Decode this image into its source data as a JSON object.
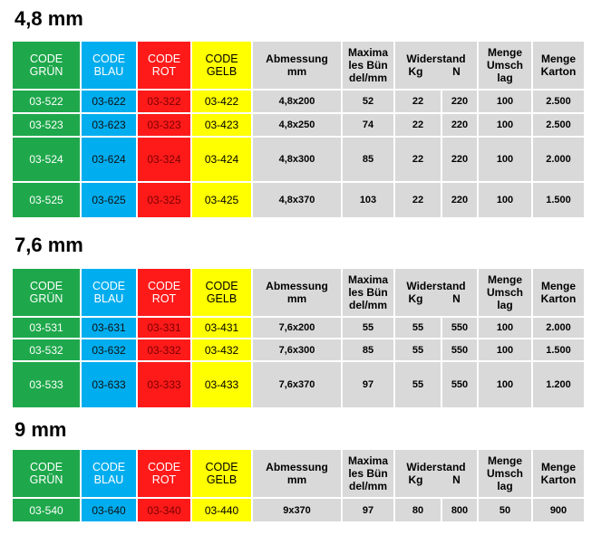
{
  "columns": [
    "CODE\nGRÜN",
    "CODE\nBLAU",
    "CODE\nROT",
    "CODE\nGELB",
    "Abmessung\nmm",
    "Maxima\nles Bün\ndel/mm",
    "Widerstand",
    "Menge\nUmsch\nlag",
    "Menge\nKarton"
  ],
  "widerstand_units": [
    "Kg",
    "N"
  ],
  "sections": [
    {
      "title": "4,8 mm",
      "rows": [
        [
          "03-522",
          "03-622",
          "03-322",
          "03-422",
          "4,8x200",
          "52",
          "22",
          "220",
          "100",
          "2.500"
        ],
        [
          "03-523",
          "03-623",
          "03-323",
          "03-423",
          "4,8x250",
          "74",
          "22",
          "220",
          "100",
          "2.500"
        ],
        [
          "03-524",
          "03-624",
          "03-324",
          "03-424",
          "4,8x300",
          "85",
          "22",
          "220",
          "100",
          "2.000"
        ],
        [
          "03-525",
          "03-625",
          "03-325",
          "03-425",
          "4,8x370",
          "103",
          "22",
          "220",
          "100",
          "1.500"
        ]
      ]
    },
    {
      "title": "7,6 mm",
      "rows": [
        [
          "03-531",
          "03-631",
          "03-331",
          "03-431",
          "7,6x200",
          "55",
          "55",
          "550",
          "100",
          "2.000"
        ],
        [
          "03-532",
          "03-632",
          "03-332",
          "03-432",
          "7,6x300",
          "85",
          "55",
          "550",
          "100",
          "1.500"
        ],
        [
          "03-533",
          "03-633",
          "03-333",
          "03-433",
          "7,6x370",
          "97",
          "55",
          "550",
          "100",
          "1.200"
        ]
      ]
    },
    {
      "title": "9 mm",
      "rows": [
        [
          "03-540",
          "03-640",
          "03-340",
          "03-440",
          "9x370",
          "97",
          "80",
          "800",
          "50",
          "900"
        ]
      ]
    }
  ]
}
